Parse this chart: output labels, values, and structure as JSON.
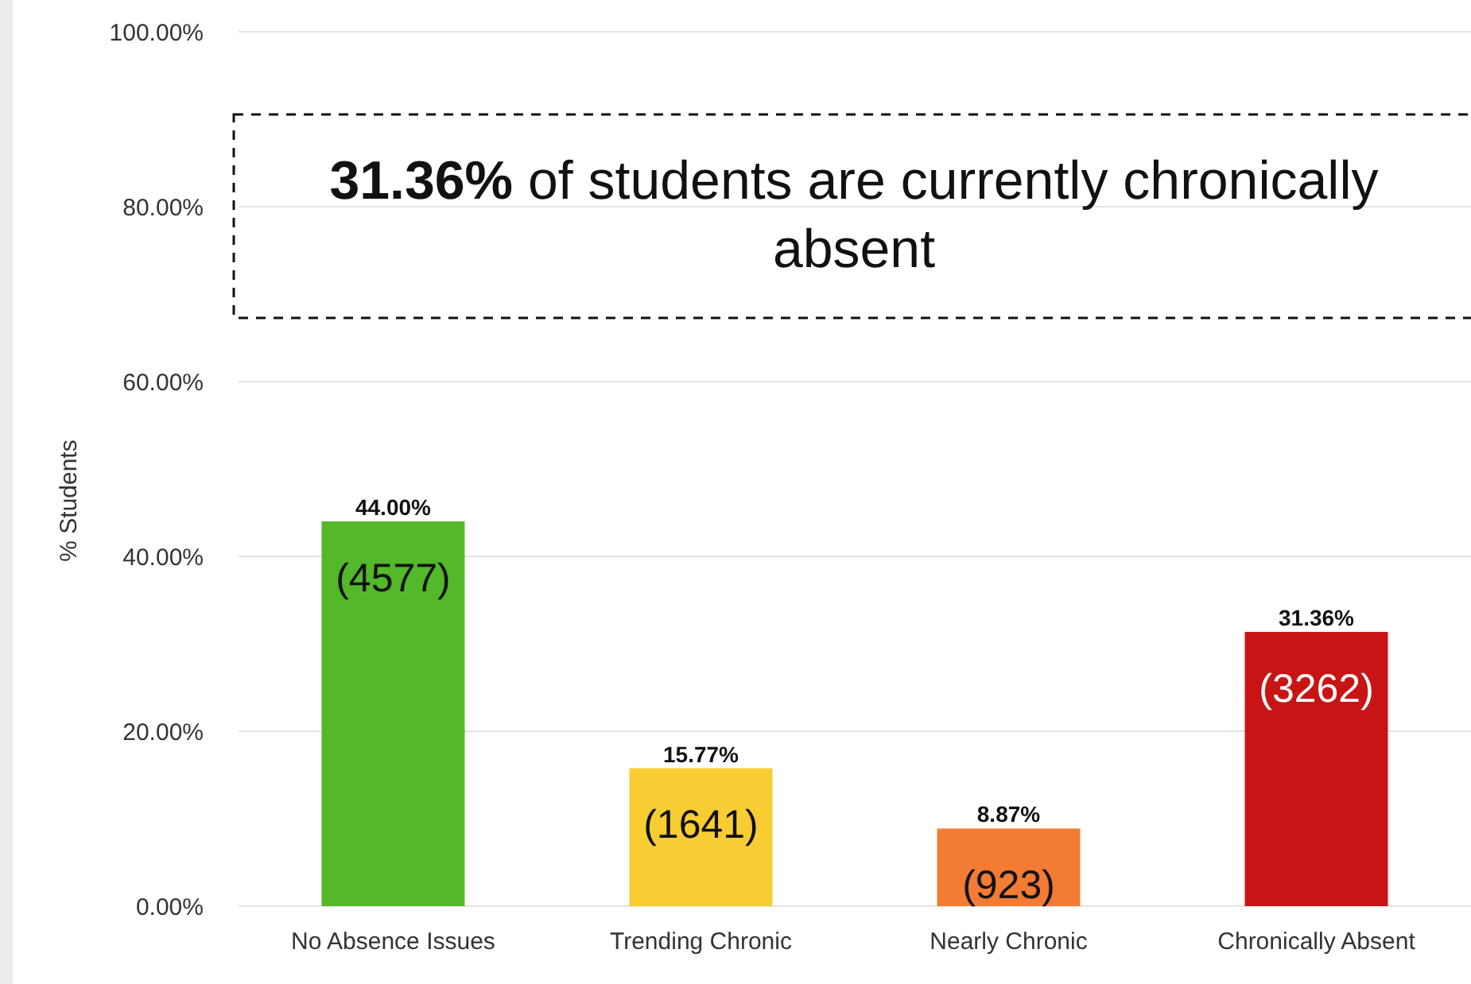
{
  "chart_data": {
    "type": "bar",
    "ylabel": "% Students",
    "categories": [
      "No Absence Issues",
      "Trending Chronic",
      "Nearly Chronic",
      "Chronically Absent"
    ],
    "values": [
      44.0,
      15.77,
      8.87,
      31.36
    ],
    "colors": [
      "#53b82a",
      "#f7cd33",
      "#f47b34",
      "#c81414"
    ],
    "value_labels": [
      "44.00%",
      "15.77%",
      "8.87%",
      "31.36%"
    ],
    "ylim": [
      0,
      100
    ],
    "yticks": [
      {
        "value": 0,
        "label": "0.00%"
      },
      {
        "value": 20,
        "label": "20.00%"
      },
      {
        "value": 40,
        "label": "40.00%"
      },
      {
        "value": 60,
        "label": "60.00%"
      },
      {
        "value": 80,
        "label": "80.00%"
      },
      {
        "value": 100,
        "label": "100.00%"
      }
    ],
    "grid": "y",
    "annotations": [
      "31.36% of students are currently chronically absent",
      "(4577)",
      "(1641)",
      "(923)",
      "(3262)"
    ]
  }
}
